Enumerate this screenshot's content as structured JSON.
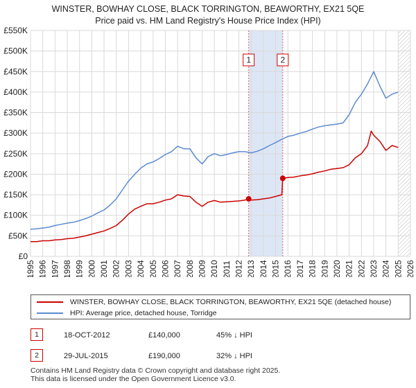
{
  "title": {
    "line1": "WINSTER, BOWHAY CLOSE, BLACK TORRINGTON, BEAWORTHY, EX21 5QE",
    "line2": "Price paid vs. HM Land Registry's House Price Index (HPI)"
  },
  "chart_data": {
    "type": "line",
    "title": "WINSTER, BOWHAY CLOSE, BLACK TORRINGTON, BEAWORTHY, EX21 5QE — Price paid vs. HM Land Registry's House Price Index (HPI)",
    "xlim": [
      1995,
      2026
    ],
    "ylim": [
      0,
      550000
    ],
    "x_ticks": [
      "1995",
      "1996",
      "1997",
      "1998",
      "1999",
      "2000",
      "2001",
      "2002",
      "2003",
      "2004",
      "2005",
      "2006",
      "2007",
      "2008",
      "2009",
      "2010",
      "2011",
      "2012",
      "2013",
      "2014",
      "2015",
      "2016",
      "2017",
      "2018",
      "2019",
      "2020",
      "2021",
      "2022",
      "2023",
      "2024",
      "2025",
      "2026"
    ],
    "y_ticks": [
      {
        "value": 0,
        "label": "£0"
      },
      {
        "value": 50000,
        "label": "£50K"
      },
      {
        "value": 100000,
        "label": "£100K"
      },
      {
        "value": 150000,
        "label": "£150K"
      },
      {
        "value": 200000,
        "label": "£200K"
      },
      {
        "value": 250000,
        "label": "£250K"
      },
      {
        "value": 300000,
        "label": "£300K"
      },
      {
        "value": 350000,
        "label": "£350K"
      },
      {
        "value": 400000,
        "label": "£400K"
      },
      {
        "value": 450000,
        "label": "£450K"
      },
      {
        "value": 500000,
        "label": "£500K"
      },
      {
        "value": 550000,
        "label": "£550K"
      }
    ],
    "grid": true,
    "shaded_period": {
      "from": 2012.8,
      "to": 2015.58
    },
    "future_hatch_from": 2025.0,
    "sale_markers": [
      {
        "label": "1",
        "x": 2012.8,
        "price": 140000
      },
      {
        "label": "2",
        "x": 2015.58,
        "price": 190000
      }
    ],
    "series": [
      {
        "name": "WINSTER, BOWHAY CLOSE, BLACK TORRINGTON, BEAWORTHY, EX21 5QE (detached house)",
        "color": "#cc0000",
        "x": [
          1995,
          1995.5,
          1996,
          1996.5,
          1997,
          1997.5,
          1998,
          1998.5,
          1999,
          1999.5,
          2000,
          2000.5,
          2001,
          2001.5,
          2002,
          2002.5,
          2003,
          2003.5,
          2004,
          2004.5,
          2005,
          2005.5,
          2006,
          2006.5,
          2007,
          2007.5,
          2008,
          2008.5,
          2009,
          2009.5,
          2010,
          2010.5,
          2011,
          2011.5,
          2012,
          2012.5,
          2012.8,
          2013,
          2013.5,
          2014,
          2014.5,
          2015,
          2015.5,
          2015.58,
          2016,
          2016.5,
          2017,
          2017.5,
          2018,
          2018.5,
          2019,
          2019.5,
          2020,
          2020.5,
          2021,
          2021.5,
          2022,
          2022.5,
          2022.8,
          2023,
          2023.5,
          2024,
          2024.5,
          2025
        ],
        "values": [
          36000,
          36000,
          38000,
          38000,
          40000,
          41000,
          43000,
          44000,
          47000,
          50000,
          54000,
          58000,
          62000,
          68000,
          75000,
          88000,
          103000,
          115000,
          122000,
          128000,
          128000,
          132000,
          137000,
          140000,
          150000,
          147000,
          146000,
          132000,
          122000,
          132000,
          136000,
          132000,
          133000,
          134000,
          135000,
          137000,
          140000,
          137000,
          138000,
          140000,
          142000,
          146000,
          150000,
          190000,
          192000,
          193000,
          196000,
          198000,
          201000,
          205000,
          208000,
          212000,
          214000,
          216000,
          223000,
          240000,
          250000,
          270000,
          305000,
          295000,
          280000,
          258000,
          270000,
          265000
        ]
      },
      {
        "name": "HPI: Average price, detached house, Torridge",
        "color": "#5b8bd0",
        "x": [
          1995,
          1995.5,
          1996,
          1996.5,
          1997,
          1997.5,
          1998,
          1998.5,
          1999,
          1999.5,
          2000,
          2000.5,
          2001,
          2001.5,
          2002,
          2002.5,
          2003,
          2003.5,
          2004,
          2004.5,
          2005,
          2005.5,
          2006,
          2006.5,
          2007,
          2007.5,
          2008,
          2008.5,
          2009,
          2009.5,
          2010,
          2010.5,
          2011,
          2011.5,
          2012,
          2012.5,
          2013,
          2013.5,
          2014,
          2014.5,
          2015,
          2015.5,
          2016,
          2016.5,
          2017,
          2017.5,
          2018,
          2018.5,
          2019,
          2019.5,
          2020,
          2020.5,
          2021,
          2021.5,
          2022,
          2022.5,
          2023,
          2023.5,
          2024,
          2024.5,
          2025
        ],
        "values": [
          66000,
          67000,
          69000,
          71000,
          75000,
          78000,
          81000,
          83000,
          87000,
          92000,
          98000,
          106000,
          113000,
          125000,
          140000,
          162000,
          183000,
          200000,
          215000,
          225000,
          230000,
          238000,
          248000,
          255000,
          268000,
          262000,
          262000,
          240000,
          225000,
          243000,
          250000,
          245000,
          248000,
          252000,
          255000,
          255000,
          252000,
          256000,
          262000,
          270000,
          277000,
          285000,
          292000,
          295000,
          300000,
          304000,
          310000,
          315000,
          318000,
          320000,
          322000,
          325000,
          345000,
          375000,
          395000,
          420000,
          450000,
          415000,
          385000,
          395000,
          400000
        ]
      }
    ]
  },
  "legend": {
    "property": "WINSTER, BOWHAY CLOSE, BLACK TORRINGTON, BEAWORTHY, EX21 5QE (detached house)",
    "hpi": "HPI: Average price, detached house, Torridge",
    "property_color": "#cc0000",
    "hpi_color": "#5b8bd0"
  },
  "sales": [
    {
      "num": "1",
      "date": "18-OCT-2012",
      "price": "£140,000",
      "hpi": "45% ↓ HPI"
    },
    {
      "num": "2",
      "date": "29-JUL-2015",
      "price": "£190,000",
      "hpi": "32% ↓ HPI"
    }
  ],
  "footer": {
    "line1": "Contains HM Land Registry data © Crown copyright and database right 2025.",
    "line2": "This data is licensed under the Open Government Licence v3.0."
  }
}
